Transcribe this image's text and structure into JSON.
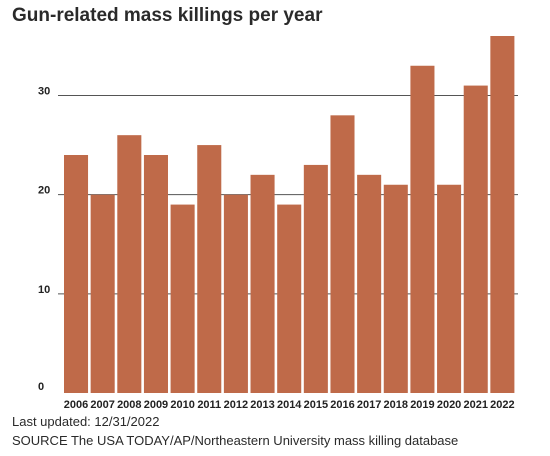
{
  "header": {
    "title": "Gun-related mass killings per year"
  },
  "footer": {
    "last_updated": "Last updated: 12/31/2022",
    "source": "SOURCE The USA TODAY/AP/Northeastern University mass killing database"
  },
  "colors": {
    "bar": "#bf6a49",
    "grid": "#555555",
    "tick_text": "#222222"
  },
  "chart_data": {
    "type": "bar",
    "title": "Gun-related mass killings per year",
    "xlabel": "",
    "ylabel": "",
    "categories": [
      "2006",
      "2007",
      "2008",
      "2009",
      "2010",
      "2011",
      "2012",
      "2013",
      "2014",
      "2015",
      "2016",
      "2017",
      "2018",
      "2019",
      "2020",
      "2021",
      "2022"
    ],
    "values": [
      24,
      20,
      26,
      24,
      19,
      25,
      20,
      22,
      19,
      23,
      28,
      22,
      21,
      33,
      21,
      31,
      36
    ],
    "ylim": [
      0,
      36
    ],
    "yticks": [
      "0",
      "10",
      "20",
      "30"
    ],
    "grid": true
  }
}
